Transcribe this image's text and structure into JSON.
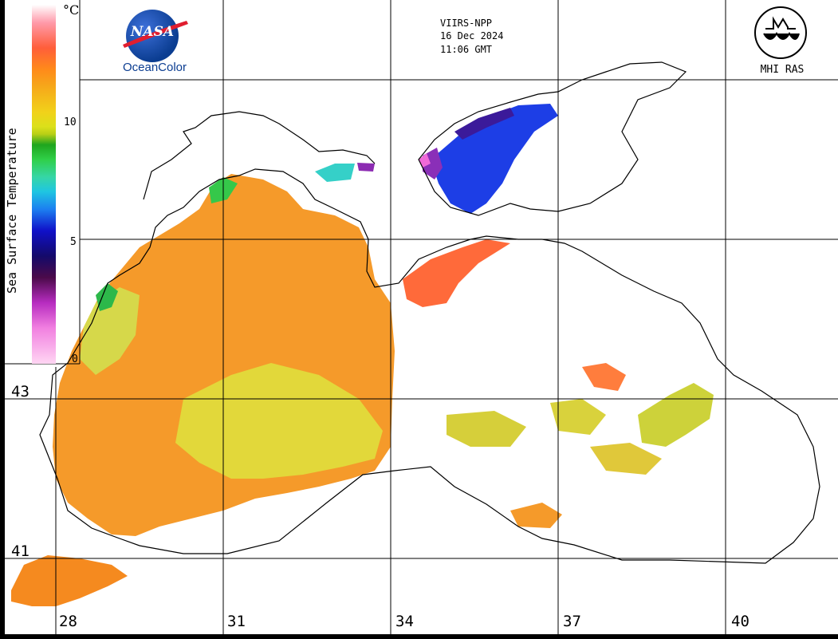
{
  "header": {
    "satellite": "VIIRS-NPP",
    "date": "16 Dec 2024",
    "time": "11:06 GMT"
  },
  "logos": {
    "nasa_word": "NASA",
    "nasa_caption": "OceanColor",
    "institute": "MHI RAS"
  },
  "colorbar": {
    "label": "Sea Surface Temperature",
    "unit": "°C",
    "ticks": [
      "10",
      "5",
      "0"
    ],
    "colors": {
      "warm": "#ff8a1a",
      "mid": "#dbe01a",
      "cool": "#1fa51e",
      "cold": "#1c7ef0",
      "coldest": "#f17fe0"
    }
  },
  "graticule": {
    "latitudes": [
      "43",
      "41"
    ],
    "longitudes": [
      "28",
      "31",
      "34",
      "37",
      "40"
    ]
  }
}
